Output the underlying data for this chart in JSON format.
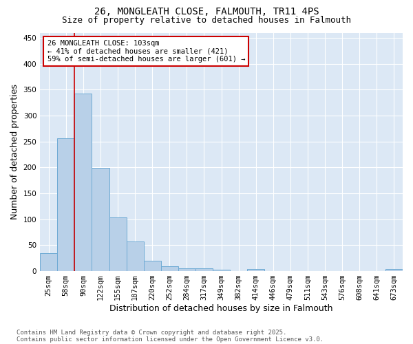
{
  "title": "26, MONGLEATH CLOSE, FALMOUTH, TR11 4PS",
  "subtitle": "Size of property relative to detached houses in Falmouth",
  "xlabel": "Distribution of detached houses by size in Falmouth",
  "ylabel": "Number of detached properties",
  "footnote1": "Contains HM Land Registry data © Crown copyright and database right 2025.",
  "footnote2": "Contains public sector information licensed under the Open Government Licence v3.0.",
  "categories": [
    "25sqm",
    "58sqm",
    "90sqm",
    "122sqm",
    "155sqm",
    "187sqm",
    "220sqm",
    "252sqm",
    "284sqm",
    "317sqm",
    "349sqm",
    "382sqm",
    "414sqm",
    "446sqm",
    "479sqm",
    "511sqm",
    "543sqm",
    "576sqm",
    "608sqm",
    "641sqm",
    "673sqm"
  ],
  "values": [
    35,
    256,
    342,
    199,
    104,
    57,
    20,
    10,
    6,
    5,
    3,
    0,
    4,
    0,
    0,
    0,
    0,
    0,
    0,
    0,
    4
  ],
  "bar_color": "#b8d0e8",
  "bar_edge_color": "#6eaad4",
  "red_line_x": 2,
  "annotation_title": "26 MONGLEATH CLOSE: 103sqm",
  "annotation_line1": "← 41% of detached houses are smaller (421)",
  "annotation_line2": "59% of semi-detached houses are larger (601) →",
  "annotation_box_color": "#ffffff",
  "annotation_box_edge": "#cc0000",
  "red_line_color": "#cc0000",
  "ylim": [
    0,
    460
  ],
  "yticks": [
    0,
    50,
    100,
    150,
    200,
    250,
    300,
    350,
    400,
    450
  ],
  "plot_bg_color": "#dce8f5",
  "fig_bg_color": "#ffffff",
  "grid_color": "#ffffff",
  "title_fontsize": 10,
  "subtitle_fontsize": 9,
  "axis_label_fontsize": 9,
  "tick_fontsize": 7.5,
  "annotation_fontsize": 7.5,
  "footnote_fontsize": 6.5
}
